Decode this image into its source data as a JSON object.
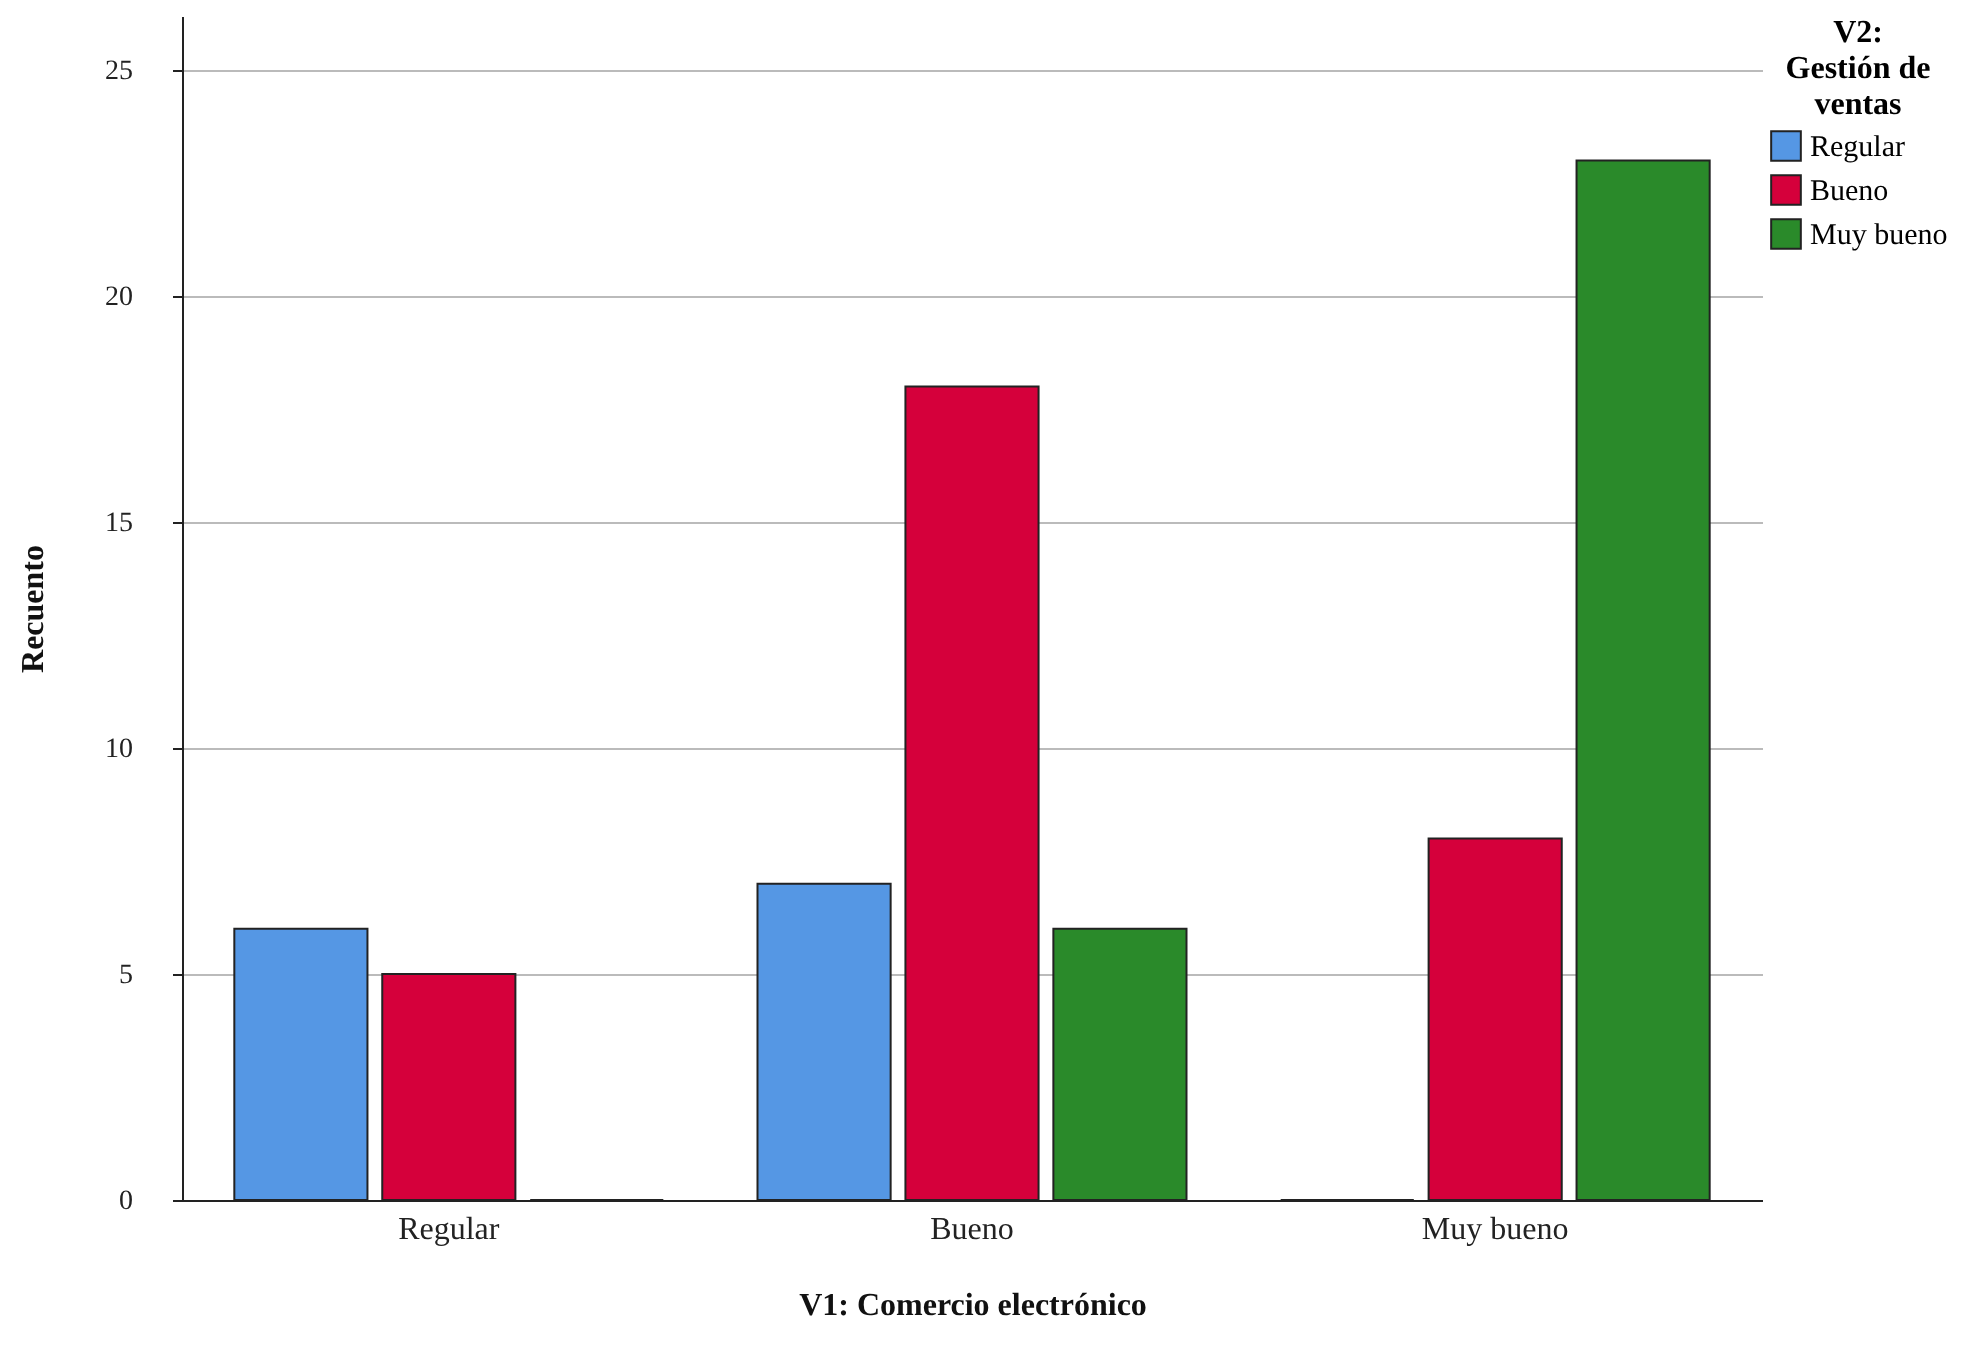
{
  "chart_data": {
    "type": "bar",
    "xlabel": "V1: Comercio electrónico",
    "ylabel": "Recuento",
    "legend_title": "V2: Gestión de ventas",
    "categories": [
      "Regular",
      "Bueno",
      "Muy bueno"
    ],
    "series": [
      {
        "name": "Regular",
        "color": "#5597e4",
        "values": [
          6,
          7,
          0
        ]
      },
      {
        "name": "Bueno",
        "color": "#d5003b",
        "values": [
          5,
          18,
          8
        ]
      },
      {
        "name": "Muy bueno",
        "color": "#2a8a2a",
        "values": [
          0,
          6,
          23
        ]
      }
    ],
    "ylim": [
      0,
      26.2
    ],
    "yticks": [
      0,
      5,
      10,
      15,
      20,
      25
    ],
    "grid": "y",
    "legend": "right"
  }
}
